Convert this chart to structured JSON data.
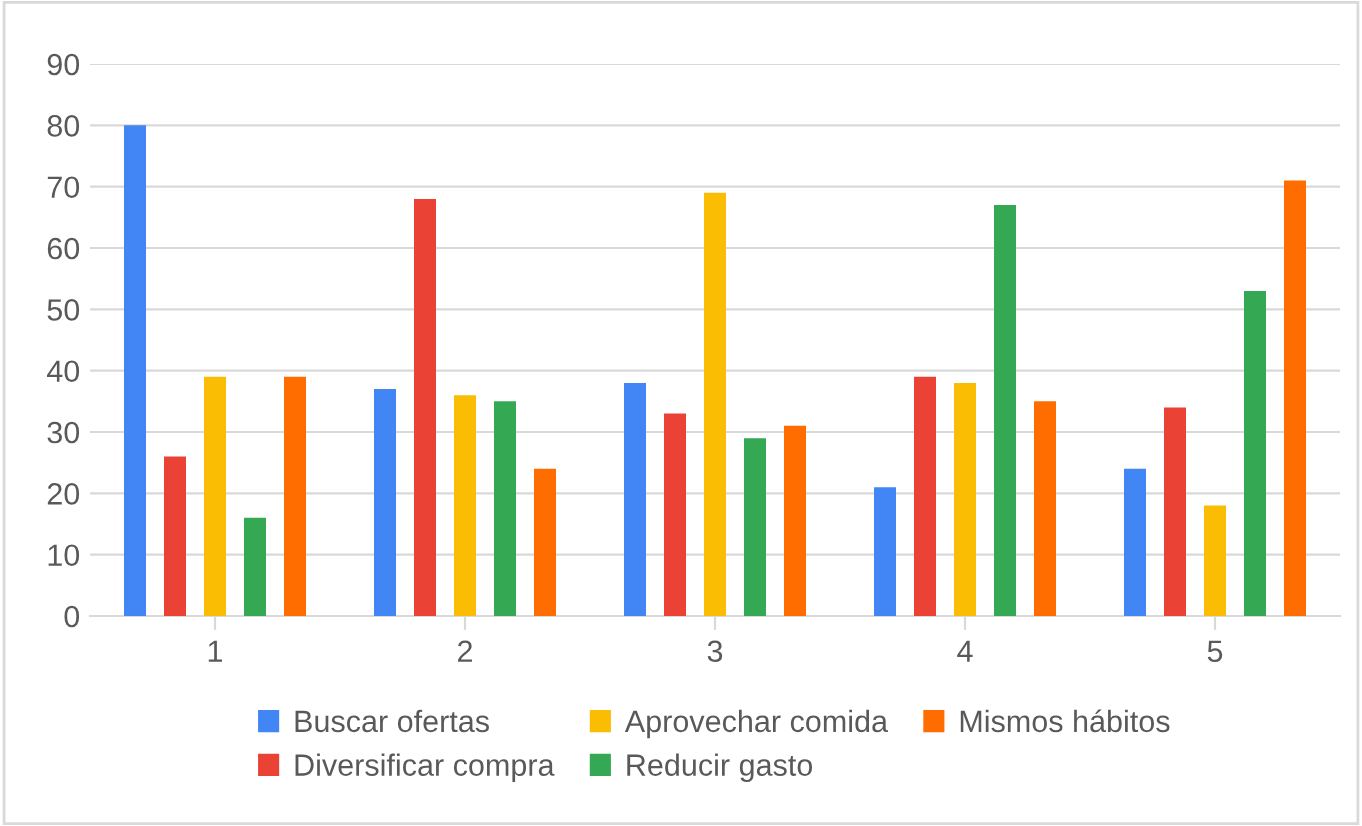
{
  "chart_data": {
    "type": "bar",
    "categories": [
      "1",
      "2",
      "3",
      "4",
      "5"
    ],
    "series": [
      {
        "name": "Buscar ofertas",
        "color": "#4285f4",
        "values": [
          80,
          37,
          38,
          21,
          24
        ]
      },
      {
        "name": "Diversificar compra",
        "color": "#ea4335",
        "values": [
          26,
          68,
          33,
          39,
          34
        ]
      },
      {
        "name": "Aprovechar comida",
        "color": "#fbbc04",
        "values": [
          39,
          36,
          69,
          38,
          18
        ]
      },
      {
        "name": "Reducir gasto",
        "color": "#34a853",
        "values": [
          16,
          35,
          29,
          67,
          53
        ]
      },
      {
        "name": "Mismos hábitos",
        "color": "#ff6d01",
        "values": [
          39,
          24,
          31,
          35,
          71
        ]
      }
    ],
    "ylim": [
      0,
      90
    ],
    "yticks": [
      0,
      10,
      20,
      30,
      40,
      50,
      60,
      70,
      80,
      90
    ],
    "grid": "y",
    "legend": "bottom"
  }
}
